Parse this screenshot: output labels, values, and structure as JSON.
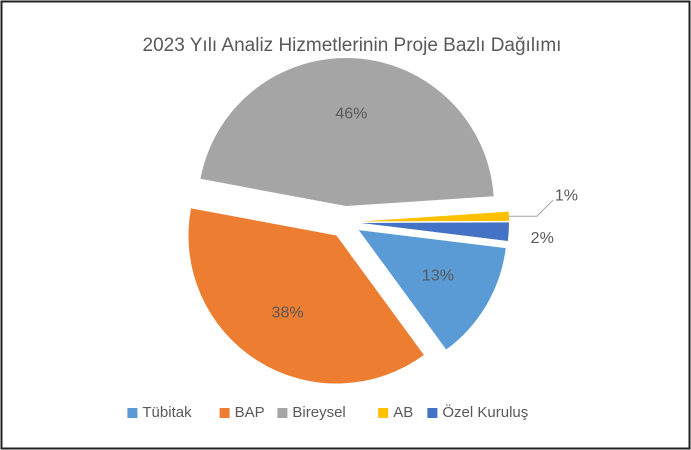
{
  "chart_data": {
    "type": "pie",
    "title": "2023 Yılı Analiz Hizmetlerinin Proje Bazlı Dağılımı",
    "categories": [
      "Tübitak",
      "BAP",
      "Bireysel",
      "AB",
      "Özel Kuruluş"
    ],
    "values": [
      13,
      38,
      46,
      1,
      2
    ],
    "value_labels": [
      "13%",
      "38%",
      "46%",
      "1%",
      "2%"
    ],
    "colors": [
      "#5b9bd5",
      "#ed7d31",
      "#a5a5a5",
      "#ffc000",
      "#4472c4"
    ],
    "legend": "bottom"
  }
}
